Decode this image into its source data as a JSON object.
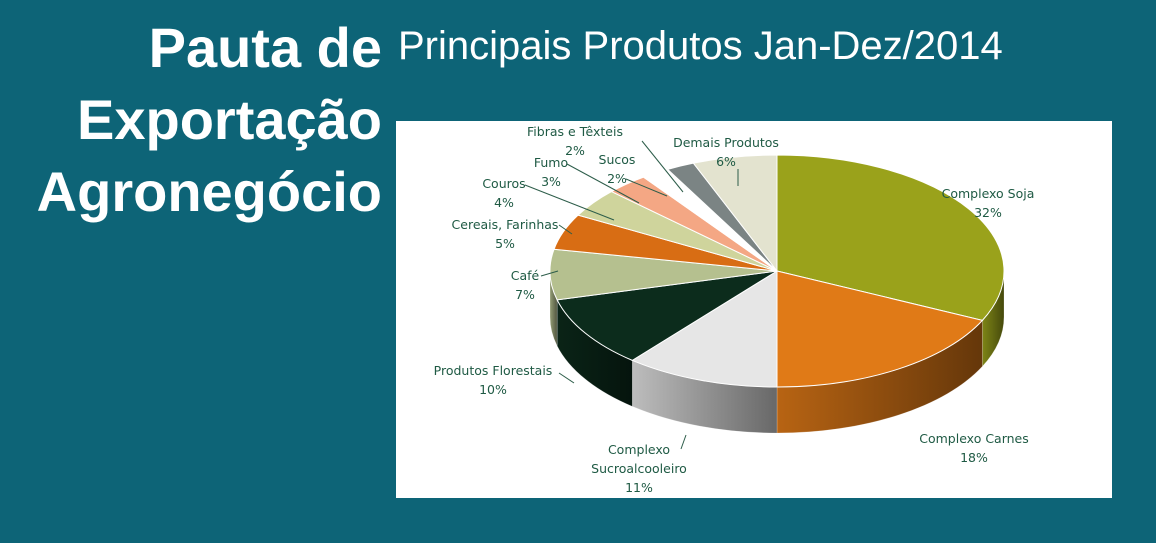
{
  "slide": {
    "title_lines": [
      "Pauta de",
      "Exportação",
      "Agronegócio"
    ],
    "subtitle": "Principais Produtos Jan-Dez/2014"
  },
  "chart_data": {
    "type": "pie",
    "title": "",
    "three_d": true,
    "slices": [
      {
        "label": [
          "Complexo Soja"
        ],
        "value": 32,
        "value_label": "32%",
        "color": "#9aa21b"
      },
      {
        "label": [
          "Complexo Carnes"
        ],
        "value": 18,
        "value_label": "18%",
        "color": "#e07a17"
      },
      {
        "label": [
          "Complexo",
          "Sucroalcooleiro"
        ],
        "value": 11,
        "value_label": "11%",
        "color": "#e6e6e6"
      },
      {
        "label": [
          "Produtos Florestais"
        ],
        "value": 10,
        "value_label": "10%",
        "color": "#0c2c1c"
      },
      {
        "label": [
          "Café"
        ],
        "value": 7,
        "value_label": "7%",
        "color": "#b5c08f"
      },
      {
        "label": [
          "Cereais, Farinhas"
        ],
        "value": 5,
        "value_label": "5%",
        "color": "#d86d14"
      },
      {
        "label": [
          "Couros"
        ],
        "value": 4,
        "value_label": "4%",
        "color": "#cfd49c"
      },
      {
        "label": [
          "Fumo"
        ],
        "value": 3,
        "value_label": "3%",
        "color": "#f4a784"
      },
      {
        "label": [
          "Sucos"
        ],
        "value": 2,
        "value_label": "2%",
        "color": "#ffffff"
      },
      {
        "label": [
          "Fibras e Têxteis"
        ],
        "value": 2,
        "value_label": "2%",
        "color": "#7b8484"
      },
      {
        "label": [
          "Demais Produtos"
        ],
        "value": 6,
        "value_label": "6%",
        "color": "#e3e3cf"
      }
    ]
  }
}
